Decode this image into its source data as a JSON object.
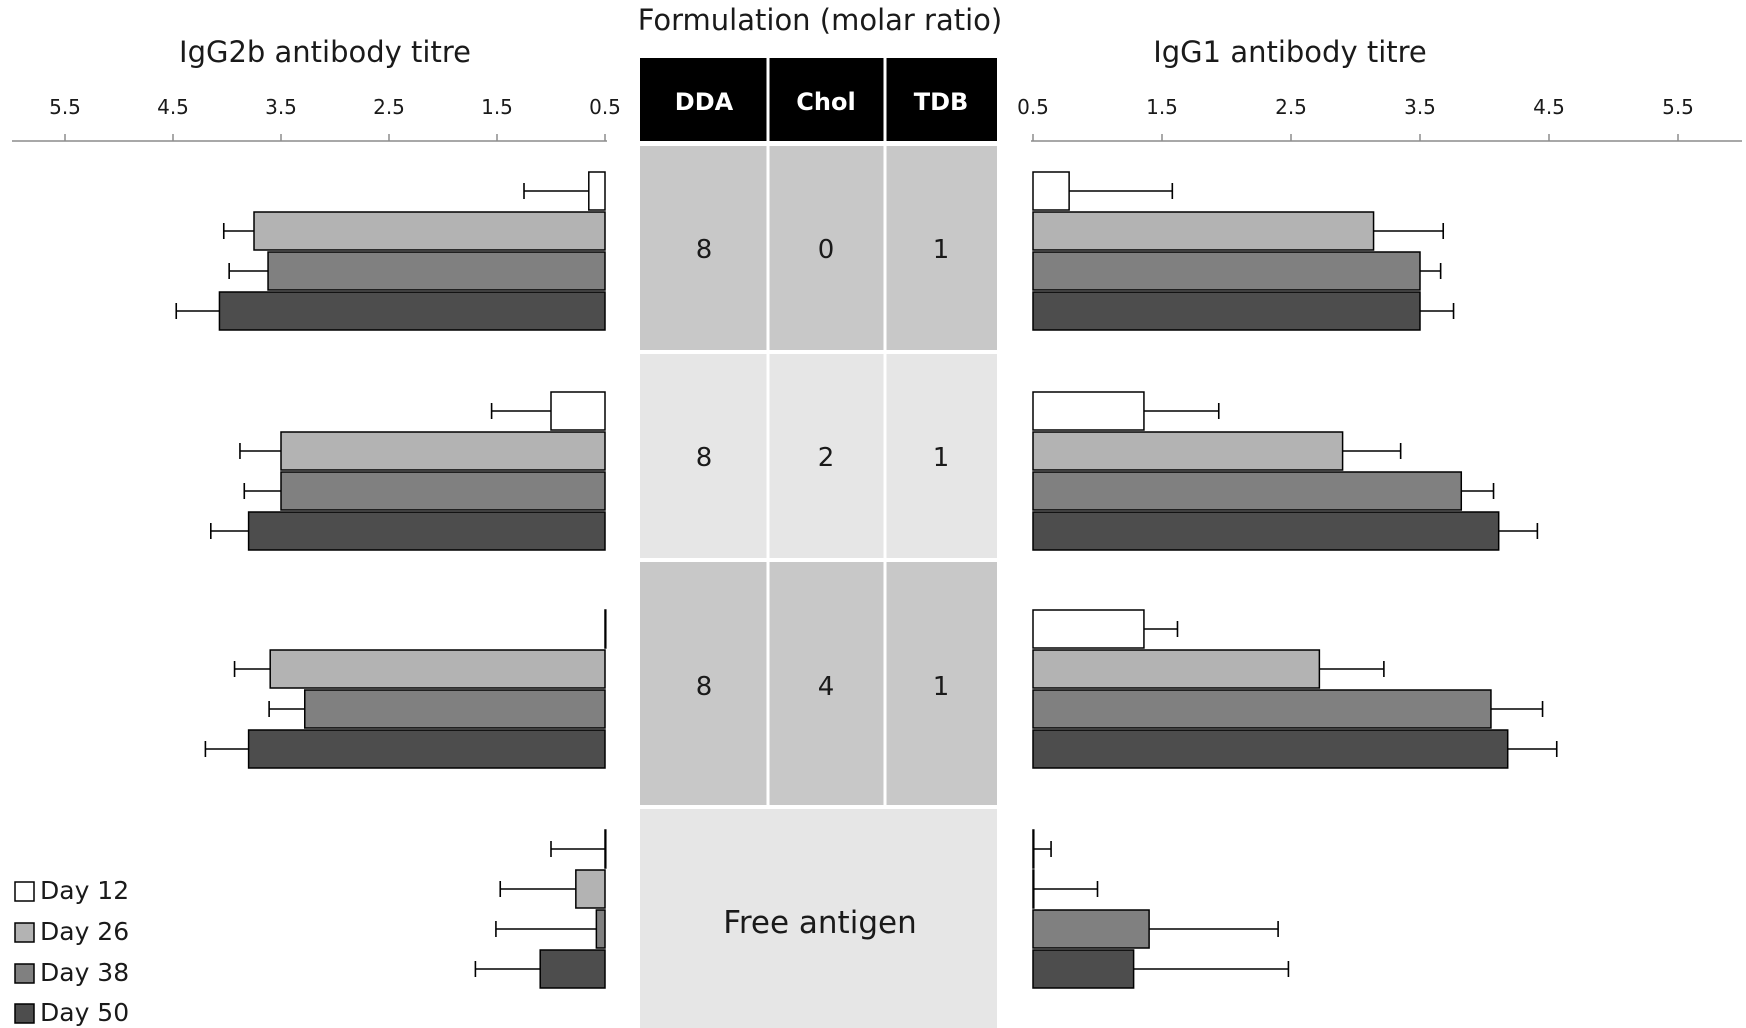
{
  "center_title": "Formulation (molar ratio)",
  "table": {
    "headers": [
      "DDA",
      "Chol",
      "TDB"
    ],
    "rows": [
      [
        "8",
        "0",
        "1"
      ],
      [
        "8",
        "2",
        "1"
      ],
      [
        "8",
        "4",
        "1"
      ]
    ],
    "free_row_label": "Free antigen"
  },
  "chart_data": [
    {
      "type": "bar",
      "orientation": "horizontal",
      "direction": "right-to-left",
      "title": "IgG2b antibody titre",
      "xlim": [
        0.5,
        6
      ],
      "ticks": [
        "5.5",
        "4.5",
        "3.5",
        "2.5",
        "1.5",
        "0.5"
      ],
      "tick_values": [
        5.5,
        4.5,
        3.5,
        2.5,
        1.5,
        0.5
      ],
      "categories": [
        "8:0:1",
        "8:2:1",
        "8:4:1",
        "Free antigen"
      ],
      "series": [
        {
          "name": "Day 12",
          "values": [
            0.65,
            1.0,
            0.5,
            0.5
          ],
          "errors": [
            0.6,
            0.55,
            0.0,
            0.5
          ]
        },
        {
          "name": "Day 26",
          "values": [
            3.75,
            3.5,
            3.6,
            0.77
          ],
          "errors": [
            0.28,
            0.38,
            0.33,
            0.7
          ]
        },
        {
          "name": "Day 38",
          "values": [
            3.62,
            3.5,
            3.28,
            0.58
          ],
          "errors": [
            0.36,
            0.34,
            0.33,
            0.93
          ]
        },
        {
          "name": "Day 50",
          "values": [
            4.07,
            3.8,
            3.8,
            1.1
          ],
          "errors": [
            0.4,
            0.35,
            0.4,
            0.6
          ]
        }
      ]
    },
    {
      "type": "bar",
      "orientation": "horizontal",
      "direction": "left-to-right",
      "title": "IgG1 antibody titre",
      "xlim": [
        0.5,
        6
      ],
      "ticks": [
        "0.5",
        "1.5",
        "2.5",
        "3.5",
        "4.5",
        "5.5"
      ],
      "tick_values": [
        0.5,
        1.5,
        2.5,
        3.5,
        4.5,
        5.5
      ],
      "categories": [
        "8:0:1",
        "8:2:1",
        "8:4:1",
        "Free antigen"
      ],
      "series": [
        {
          "name": "Day 12",
          "values": [
            0.78,
            1.36,
            1.36,
            0.5
          ],
          "errors": [
            0.8,
            0.58,
            0.26,
            0.14
          ]
        },
        {
          "name": "Day 26",
          "values": [
            3.14,
            2.9,
            2.72,
            0.5
          ],
          "errors": [
            0.54,
            0.45,
            0.5,
            0.5
          ]
        },
        {
          "name": "Day 38",
          "values": [
            3.5,
            3.82,
            4.05,
            1.4
          ],
          "errors": [
            0.16,
            0.25,
            0.4,
            1.0
          ]
        },
        {
          "name": "Day 50",
          "values": [
            3.5,
            4.11,
            4.18,
            1.28
          ],
          "errors": [
            0.26,
            0.3,
            0.38,
            1.2
          ]
        }
      ]
    }
  ],
  "legend": {
    "items": [
      {
        "label": "Day 12",
        "color": "#ffffff"
      },
      {
        "label": "Day 26",
        "color": "#b3b3b3"
      },
      {
        "label": "Day 38",
        "color": "#808080"
      },
      {
        "label": "Day 50",
        "color": "#4d4d4d"
      }
    ]
  },
  "colors": {
    "header_bg": "#000000",
    "cell_dark": "#c8c8c8",
    "cell_light": "#e6e6e6",
    "axis": "#8c8c8c",
    "bar_stroke": "#000000"
  }
}
